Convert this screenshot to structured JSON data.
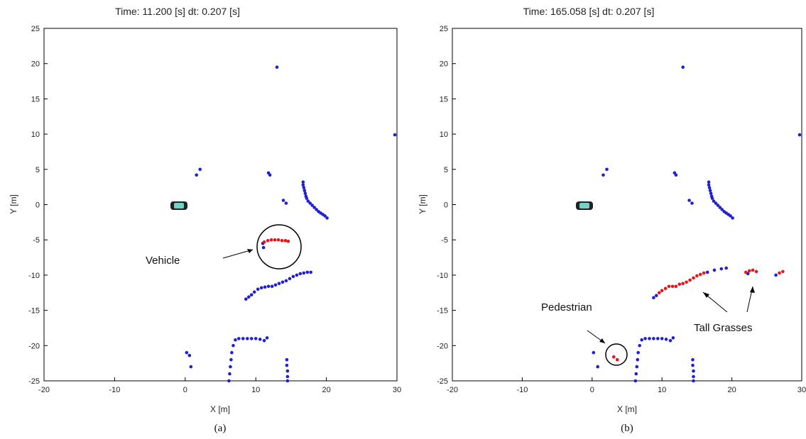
{
  "colors": {
    "blue_points": "#1f1fd6",
    "red_points": "#e8151b",
    "vehicle_fill": "#6fd3c8",
    "axis": "#000000"
  },
  "chart_data": [
    {
      "type": "scatter",
      "title": "Time: 11.200 [s]   dt: 0.207 [s]",
      "xlabel": "X [m]",
      "ylabel": "Y [m]",
      "xlim": [
        -20,
        30
      ],
      "ylim": [
        -25,
        25
      ],
      "xticks": [
        "-20",
        "-10",
        "0",
        "10",
        "20",
        "30"
      ],
      "yticks": [
        "25",
        "20",
        "15",
        "10",
        "5",
        "0",
        "-5",
        "-10",
        "-15",
        "-20",
        "-25"
      ],
      "caption": "(a)",
      "annotations": [
        {
          "text": "Vehicle"
        }
      ],
      "series": [
        {
          "color": "blue",
          "points": [
            [
              13.0,
              19.5
            ],
            [
              29.7,
              9.9
            ],
            [
              1.6,
              4.2
            ],
            [
              2.1,
              5.0
            ],
            [
              11.8,
              4.5
            ],
            [
              12.0,
              4.2
            ],
            [
              13.9,
              0.6
            ],
            [
              14.3,
              0.2
            ],
            [
              16.7,
              3.2
            ],
            [
              16.7,
              2.8
            ],
            [
              16.8,
              2.4
            ],
            [
              16.9,
              2.0
            ],
            [
              17.0,
              1.6
            ],
            [
              17.1,
              1.2
            ],
            [
              17.2,
              0.9
            ],
            [
              17.4,
              0.5
            ],
            [
              17.7,
              0.2
            ],
            [
              18.0,
              -0.1
            ],
            [
              18.3,
              -0.4
            ],
            [
              18.6,
              -0.7
            ],
            [
              18.9,
              -1.0
            ],
            [
              19.2,
              -1.2
            ],
            [
              19.5,
              -1.4
            ],
            [
              19.8,
              -1.6
            ],
            [
              20.1,
              -1.9
            ],
            [
              11.0,
              -5.5
            ],
            [
              11.1,
              -6.1
            ],
            [
              8.6,
              -13.4
            ],
            [
              9.0,
              -13.1
            ],
            [
              9.4,
              -12.8
            ],
            [
              9.8,
              -12.4
            ],
            [
              10.3,
              -12.0
            ],
            [
              10.8,
              -11.8
            ],
            [
              11.3,
              -11.7
            ],
            [
              11.8,
              -11.6
            ],
            [
              12.3,
              -11.6
            ],
            [
              12.8,
              -11.4
            ],
            [
              13.3,
              -11.2
            ],
            [
              13.8,
              -11.0
            ],
            [
              14.3,
              -10.8
            ],
            [
              14.8,
              -10.5
            ],
            [
              15.3,
              -10.2
            ],
            [
              15.8,
              -10.0
            ],
            [
              16.3,
              -9.8
            ],
            [
              16.8,
              -9.7
            ],
            [
              17.3,
              -9.6
            ],
            [
              17.8,
              -9.6
            ],
            [
              0.2,
              -21.0
            ],
            [
              0.6,
              -21.4
            ],
            [
              0.8,
              -23.0
            ],
            [
              6.2,
              -25.0
            ],
            [
              6.3,
              -24.0
            ],
            [
              6.4,
              -23.0
            ],
            [
              6.5,
              -22.0
            ],
            [
              6.6,
              -21.0
            ],
            [
              6.8,
              -20.0
            ],
            [
              7.1,
              -19.2
            ],
            [
              7.6,
              -19.0
            ],
            [
              8.2,
              -19.0
            ],
            [
              8.8,
              -19.0
            ],
            [
              9.4,
              -19.0
            ],
            [
              10.0,
              -19.0
            ],
            [
              10.6,
              -19.1
            ],
            [
              11.2,
              -19.3
            ],
            [
              11.6,
              -18.9
            ],
            [
              14.4,
              -22.0
            ],
            [
              14.4,
              -22.8
            ],
            [
              14.5,
              -23.6
            ],
            [
              14.5,
              -24.4
            ],
            [
              14.5,
              -25.0
            ]
          ]
        },
        {
          "color": "red",
          "points": [
            [
              11.2,
              -5.3
            ],
            [
              11.7,
              -5.1
            ],
            [
              12.2,
              -5.0
            ],
            [
              12.7,
              -5.0
            ],
            [
              13.2,
              -5.0
            ],
            [
              13.7,
              -5.1
            ],
            [
              14.2,
              -5.1
            ],
            [
              14.6,
              -5.2
            ]
          ]
        }
      ]
    },
    {
      "type": "scatter",
      "title": "Time: 165.058 [s]   dt: 0.207 [s]",
      "xlabel": "X [m]",
      "ylabel": "Y [m]",
      "xlim": [
        -20,
        30
      ],
      "ylim": [
        -25,
        25
      ],
      "xticks": [
        "-20",
        "-10",
        "0",
        "10",
        "20",
        "30"
      ],
      "yticks": [
        "25",
        "20",
        "15",
        "10",
        "5",
        "0",
        "-5",
        "-10",
        "-15",
        "-20",
        "-25"
      ],
      "caption": "(b)",
      "annotations": [
        {
          "text": "Pedestrian"
        },
        {
          "text": "Tall Grasses"
        }
      ],
      "series": [
        {
          "color": "blue",
          "points": [
            [
              13.0,
              19.5
            ],
            [
              29.7,
              9.9
            ],
            [
              1.6,
              4.2
            ],
            [
              2.1,
              5.0
            ],
            [
              11.8,
              4.5
            ],
            [
              12.0,
              4.2
            ],
            [
              13.9,
              0.6
            ],
            [
              14.3,
              0.2
            ],
            [
              16.7,
              3.2
            ],
            [
              16.7,
              2.8
            ],
            [
              16.8,
              2.4
            ],
            [
              16.9,
              2.0
            ],
            [
              17.0,
              1.6
            ],
            [
              17.1,
              1.2
            ],
            [
              17.2,
              0.9
            ],
            [
              17.4,
              0.5
            ],
            [
              17.7,
              0.2
            ],
            [
              18.0,
              -0.1
            ],
            [
              18.3,
              -0.4
            ],
            [
              18.6,
              -0.7
            ],
            [
              18.9,
              -1.0
            ],
            [
              19.2,
              -1.2
            ],
            [
              19.5,
              -1.4
            ],
            [
              19.8,
              -1.6
            ],
            [
              20.1,
              -1.9
            ],
            [
              8.8,
              -13.2
            ],
            [
              9.2,
              -12.9
            ],
            [
              16.5,
              -9.6
            ],
            [
              17.5,
              -9.3
            ],
            [
              18.5,
              -9.1
            ],
            [
              19.2,
              -9.0
            ],
            [
              22.3,
              -9.8
            ],
            [
              26.3,
              -10.0
            ],
            [
              0.2,
              -21.0
            ],
            [
              0.8,
              -23.0
            ],
            [
              6.2,
              -25.0
            ],
            [
              6.3,
              -24.0
            ],
            [
              6.4,
              -23.0
            ],
            [
              6.5,
              -22.0
            ],
            [
              6.6,
              -21.0
            ],
            [
              6.8,
              -20.0
            ],
            [
              7.1,
              -19.2
            ],
            [
              7.6,
              -19.0
            ],
            [
              8.2,
              -19.0
            ],
            [
              8.8,
              -19.0
            ],
            [
              9.4,
              -19.0
            ],
            [
              10.0,
              -19.0
            ],
            [
              10.6,
              -19.1
            ],
            [
              11.2,
              -19.3
            ],
            [
              11.6,
              -18.9
            ],
            [
              14.4,
              -22.0
            ],
            [
              14.4,
              -22.8
            ],
            [
              14.5,
              -23.6
            ],
            [
              14.5,
              -24.4
            ],
            [
              14.5,
              -25.0
            ]
          ]
        },
        {
          "color": "red",
          "points": [
            [
              9.6,
              -12.5
            ],
            [
              10.0,
              -12.2
            ],
            [
              10.5,
              -11.9
            ],
            [
              11.0,
              -11.6
            ],
            [
              11.5,
              -11.6
            ],
            [
              12.0,
              -11.6
            ],
            [
              12.5,
              -11.3
            ],
            [
              13.0,
              -11.2
            ],
            [
              13.5,
              -11.0
            ],
            [
              14.0,
              -10.7
            ],
            [
              14.5,
              -10.4
            ],
            [
              15.0,
              -10.1
            ],
            [
              15.5,
              -9.9
            ],
            [
              16.0,
              -9.7
            ],
            [
              22.0,
              -9.6
            ],
            [
              22.5,
              -9.4
            ],
            [
              23.0,
              -9.3
            ],
            [
              23.5,
              -9.5
            ],
            [
              26.8,
              -9.7
            ],
            [
              27.3,
              -9.5
            ],
            [
              3.1,
              -21.6
            ],
            [
              3.6,
              -22.0
            ]
          ]
        }
      ]
    }
  ]
}
